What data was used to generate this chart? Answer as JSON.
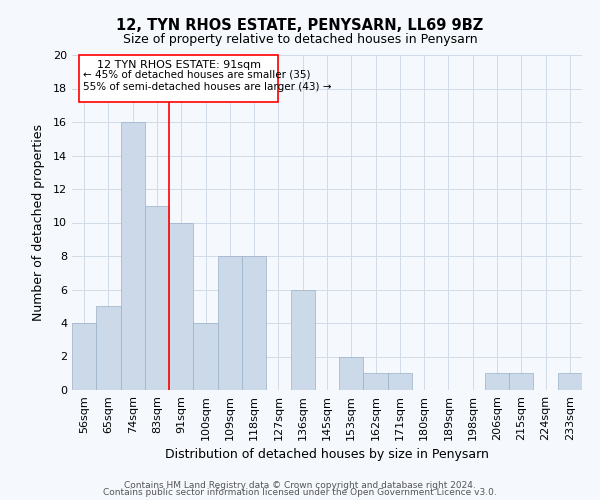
{
  "title": "12, TYN RHOS ESTATE, PENYSARN, LL69 9BZ",
  "subtitle": "Size of property relative to detached houses in Penysarn",
  "xlabel": "Distribution of detached houses by size in Penysarn",
  "ylabel": "Number of detached properties",
  "bin_labels": [
    "56sqm",
    "65sqm",
    "74sqm",
    "83sqm",
    "91sqm",
    "100sqm",
    "109sqm",
    "118sqm",
    "127sqm",
    "136sqm",
    "145sqm",
    "153sqm",
    "162sqm",
    "171sqm",
    "180sqm",
    "189sqm",
    "198sqm",
    "206sqm",
    "215sqm",
    "224sqm",
    "233sqm"
  ],
  "bar_heights": [
    4,
    5,
    16,
    11,
    10,
    4,
    8,
    8,
    0,
    6,
    0,
    2,
    1,
    1,
    0,
    0,
    0,
    1,
    1,
    0,
    1
  ],
  "bar_color": "#ccd9e8",
  "bar_edge_color": "#9ab0c8",
  "highlight_line_index": 4,
  "ylim": [
    0,
    20
  ],
  "yticks": [
    0,
    2,
    4,
    6,
    8,
    10,
    12,
    14,
    16,
    18,
    20
  ],
  "annotation_title": "12 TYN RHOS ESTATE: 91sqm",
  "annotation_line1": "← 45% of detached houses are smaller (35)",
  "annotation_line2": "55% of semi-detached houses are larger (43) →",
  "footer1": "Contains HM Land Registry data © Crown copyright and database right 2024.",
  "footer2": "Contains public sector information licensed under the Open Government Licence v3.0.",
  "grid_color": "#d0dce8",
  "background_color": "#f5f8fc"
}
